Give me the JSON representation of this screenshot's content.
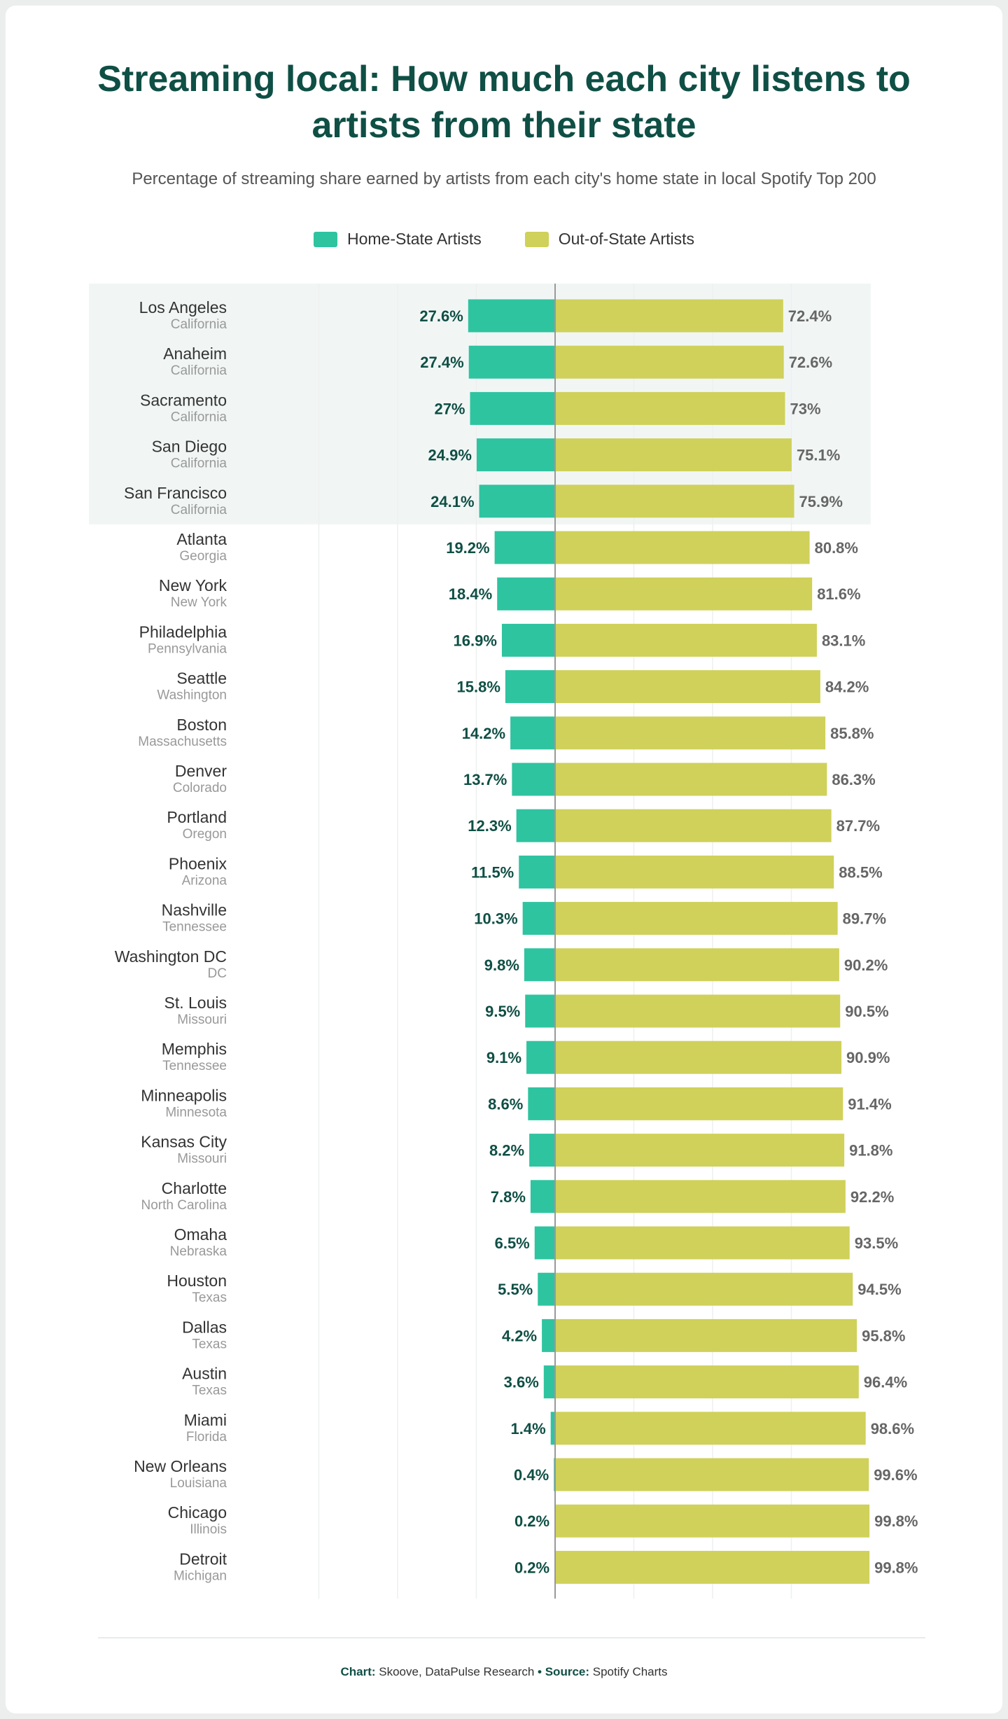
{
  "title_line1": "Streaming local: How much each city listens to",
  "title_line2": "artists from their state",
  "subtitle": "Percentage of streaming share earned by artists from each city's home state in local Spotify Top 200",
  "footer": {
    "chart_label": "Chart:",
    "chart_value": " Skoove, DataPulse Research ",
    "bullet": "•",
    "source_label": " Source:",
    "source_value": " Spotify Charts"
  },
  "colors": {
    "home": "#2ec4a0",
    "out": "#cfd15a",
    "highlight": "#f1f6f5",
    "title": "#0f4f45"
  },
  "chart_data": {
    "type": "bar",
    "orientation": "diverging-horizontal",
    "legend": [
      "Home-State Artists",
      "Out-of-State Artists"
    ],
    "legend_placement": "top",
    "xlim": [
      -100,
      100
    ],
    "grid": true,
    "highlighted_state": "California",
    "rows": [
      {
        "city": "Los Angeles",
        "state": "California",
        "home": 27.6,
        "out": 72.4
      },
      {
        "city": "Anaheim",
        "state": "California",
        "home": 27.4,
        "out": 72.6
      },
      {
        "city": "Sacramento",
        "state": "California",
        "home": 27,
        "out": 73
      },
      {
        "city": "San Diego",
        "state": "California",
        "home": 24.9,
        "out": 75.1
      },
      {
        "city": "San Francisco",
        "state": "California",
        "home": 24.1,
        "out": 75.9
      },
      {
        "city": "Atlanta",
        "state": "Georgia",
        "home": 19.2,
        "out": 80.8
      },
      {
        "city": "New York",
        "state": "New York",
        "home": 18.4,
        "out": 81.6
      },
      {
        "city": "Philadelphia",
        "state": "Pennsylvania",
        "home": 16.9,
        "out": 83.1
      },
      {
        "city": "Seattle",
        "state": "Washington",
        "home": 15.8,
        "out": 84.2
      },
      {
        "city": "Boston",
        "state": "Massachusetts",
        "home": 14.2,
        "out": 85.8
      },
      {
        "city": "Denver",
        "state": "Colorado",
        "home": 13.7,
        "out": 86.3
      },
      {
        "city": "Portland",
        "state": "Oregon",
        "home": 12.3,
        "out": 87.7
      },
      {
        "city": "Phoenix",
        "state": "Arizona",
        "home": 11.5,
        "out": 88.5
      },
      {
        "city": "Nashville",
        "state": "Tennessee",
        "home": 10.3,
        "out": 89.7
      },
      {
        "city": "Washington DC",
        "state": "DC",
        "home": 9.8,
        "out": 90.2
      },
      {
        "city": "St. Louis",
        "state": "Missouri",
        "home": 9.5,
        "out": 90.5
      },
      {
        "city": "Memphis",
        "state": "Tennessee",
        "home": 9.1,
        "out": 90.9
      },
      {
        "city": "Minneapolis",
        "state": "Minnesota",
        "home": 8.6,
        "out": 91.4
      },
      {
        "city": "Kansas City",
        "state": "Missouri",
        "home": 8.2,
        "out": 91.8
      },
      {
        "city": "Charlotte",
        "state": "North Carolina",
        "home": 7.8,
        "out": 92.2
      },
      {
        "city": "Omaha",
        "state": "Nebraska",
        "home": 6.5,
        "out": 93.5
      },
      {
        "city": "Houston",
        "state": "Texas",
        "home": 5.5,
        "out": 94.5
      },
      {
        "city": "Dallas",
        "state": "Texas",
        "home": 4.2,
        "out": 95.8
      },
      {
        "city": "Austin",
        "state": "Texas",
        "home": 3.6,
        "out": 96.4
      },
      {
        "city": "Miami",
        "state": "Florida",
        "home": 1.4,
        "out": 98.6
      },
      {
        "city": "New Orleans",
        "state": "Louisiana",
        "home": 0.4,
        "out": 99.6
      },
      {
        "city": "Chicago",
        "state": "Illinois",
        "home": 0.2,
        "out": 99.8
      },
      {
        "city": "Detroit",
        "state": "Michigan",
        "home": 0.2,
        "out": 99.8
      }
    ]
  }
}
